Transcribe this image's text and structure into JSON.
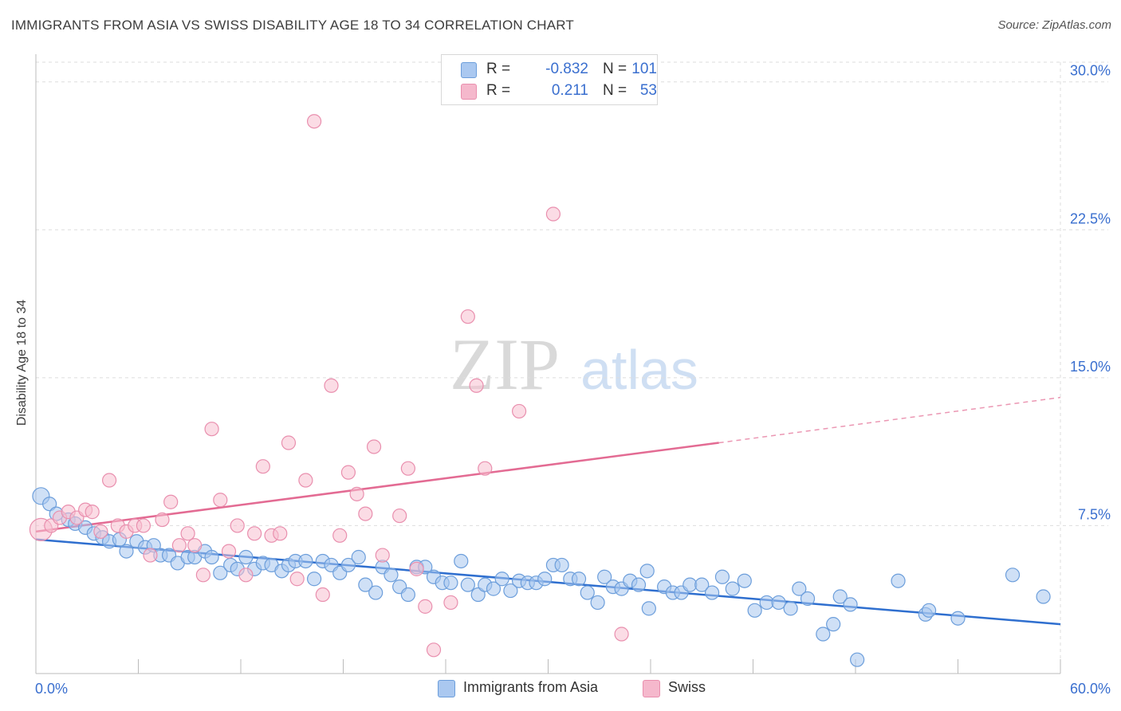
{
  "header": {
    "title": "IMMIGRANTS FROM ASIA VS SWISS DISABILITY AGE 18 TO 34 CORRELATION CHART",
    "source": "Source: ZipAtlas.com"
  },
  "watermark": {
    "zip": "ZIP",
    "atlas": "atlas"
  },
  "legend": {
    "rows": [
      {
        "r_label": "R =",
        "r_value": "-0.832",
        "n_label": "N =",
        "n_value": "101",
        "color": "#aac8f0"
      },
      {
        "r_label": "R =",
        "r_value": "0.211",
        "n_label": "N =",
        "n_value": "53",
        "color": "#f5b8cc"
      }
    ]
  },
  "colors": {
    "blue_fill": "#a8c6ee",
    "blue_stroke": "#6c9edb",
    "blue_line": "#2f6fcf",
    "pink_fill": "#f7bfd0",
    "pink_stroke": "#e98fae",
    "pink_line": "#e36b93",
    "tick_label": "#3a6fcf",
    "grid": "#dddddd"
  },
  "chart_data": {
    "type": "scatter",
    "title": "IMMIGRANTS FROM ASIA VS SWISS DISABILITY AGE 18 TO 34 CORRELATION CHART",
    "xlabel": "",
    "ylabel": "Disability Age 18 to 34",
    "xlim": [
      0,
      60
    ],
    "ylim": [
      0,
      31
    ],
    "x_tick_labels": [
      {
        "value": 0,
        "label": "0.0%"
      },
      {
        "value": 60,
        "label": "60.0%"
      }
    ],
    "y_ticks": [
      {
        "value": 7.5,
        "label": "7.5%"
      },
      {
        "value": 15,
        "label": "15.0%"
      },
      {
        "value": 22.5,
        "label": "22.5%"
      },
      {
        "value": 30,
        "label": "30.0%"
      }
    ],
    "grid": true,
    "legend_position": "bottom",
    "series": [
      {
        "name": "Immigrants from Asia",
        "color": "#a8c6ee",
        "trend": {
          "x0": 0,
          "y0": 6.8,
          "x1": 60,
          "y1": 2.5
        },
        "points": [
          [
            0.3,
            9.0
          ],
          [
            0.8,
            8.6
          ],
          [
            1.2,
            8.1
          ],
          [
            1.9,
            7.8
          ],
          [
            2.3,
            7.6
          ],
          [
            2.9,
            7.4
          ],
          [
            3.4,
            7.1
          ],
          [
            3.9,
            6.9
          ],
          [
            4.3,
            6.7
          ],
          [
            4.9,
            6.8
          ],
          [
            5.3,
            6.2
          ],
          [
            5.9,
            6.7
          ],
          [
            6.4,
            6.4
          ],
          [
            6.9,
            6.5
          ],
          [
            7.3,
            6.0
          ],
          [
            7.8,
            6.0
          ],
          [
            8.3,
            5.6
          ],
          [
            8.9,
            5.9
          ],
          [
            9.3,
            5.9
          ],
          [
            9.9,
            6.2
          ],
          [
            10.3,
            5.9
          ],
          [
            10.8,
            5.1
          ],
          [
            11.4,
            5.5
          ],
          [
            11.8,
            5.3
          ],
          [
            12.3,
            5.9
          ],
          [
            12.8,
            5.3
          ],
          [
            13.3,
            5.6
          ],
          [
            13.8,
            5.5
          ],
          [
            14.4,
            5.2
          ],
          [
            14.8,
            5.5
          ],
          [
            15.2,
            5.7
          ],
          [
            15.8,
            5.7
          ],
          [
            16.3,
            4.8
          ],
          [
            16.8,
            5.7
          ],
          [
            17.3,
            5.5
          ],
          [
            17.8,
            5.1
          ],
          [
            18.3,
            5.5
          ],
          [
            18.9,
            5.9
          ],
          [
            19.3,
            4.5
          ],
          [
            19.9,
            4.1
          ],
          [
            20.3,
            5.4
          ],
          [
            20.8,
            5.0
          ],
          [
            21.3,
            4.4
          ],
          [
            21.8,
            4.0
          ],
          [
            22.3,
            5.4
          ],
          [
            22.8,
            5.4
          ],
          [
            23.3,
            4.9
          ],
          [
            23.8,
            4.6
          ],
          [
            24.3,
            4.6
          ],
          [
            24.9,
            5.7
          ],
          [
            25.3,
            4.5
          ],
          [
            25.9,
            4.0
          ],
          [
            26.3,
            4.5
          ],
          [
            26.8,
            4.3
          ],
          [
            27.3,
            4.8
          ],
          [
            27.8,
            4.2
          ],
          [
            28.3,
            4.7
          ],
          [
            28.8,
            4.6
          ],
          [
            29.3,
            4.6
          ],
          [
            29.8,
            4.8
          ],
          [
            30.3,
            5.5
          ],
          [
            30.8,
            5.5
          ],
          [
            31.3,
            4.8
          ],
          [
            31.8,
            4.8
          ],
          [
            32.3,
            4.1
          ],
          [
            32.9,
            3.6
          ],
          [
            33.3,
            4.9
          ],
          [
            33.8,
            4.4
          ],
          [
            34.3,
            4.3
          ],
          [
            34.8,
            4.7
          ],
          [
            35.3,
            4.5
          ],
          [
            35.8,
            5.2
          ],
          [
            35.9,
            3.3
          ],
          [
            36.8,
            4.4
          ],
          [
            37.3,
            4.1
          ],
          [
            37.8,
            4.1
          ],
          [
            38.3,
            4.5
          ],
          [
            39.0,
            4.5
          ],
          [
            39.6,
            4.1
          ],
          [
            40.2,
            4.9
          ],
          [
            40.8,
            4.3
          ],
          [
            41.5,
            4.7
          ],
          [
            42.1,
            3.2
          ],
          [
            42.8,
            3.6
          ],
          [
            43.5,
            3.6
          ],
          [
            44.2,
            3.3
          ],
          [
            44.7,
            4.3
          ],
          [
            45.2,
            3.8
          ],
          [
            46.1,
            2.0
          ],
          [
            46.7,
            2.5
          ],
          [
            47.1,
            3.9
          ],
          [
            47.7,
            3.5
          ],
          [
            48.1,
            0.7
          ],
          [
            50.5,
            4.7
          ],
          [
            52.1,
            3.0
          ],
          [
            52.3,
            3.2
          ],
          [
            54.0,
            2.8
          ],
          [
            57.2,
            5.0
          ],
          [
            59.0,
            3.9
          ]
        ]
      },
      {
        "name": "Swiss",
        "color": "#f7bfd0",
        "trend": {
          "x0": 0,
          "y0": 7.2,
          "x1": 40,
          "y1": 11.7,
          "dash_x1": 60,
          "dash_y1": 14.0
        },
        "points": [
          [
            0.3,
            7.3
          ],
          [
            0.9,
            7.5
          ],
          [
            1.4,
            7.9
          ],
          [
            1.9,
            8.2
          ],
          [
            2.4,
            7.9
          ],
          [
            2.9,
            8.3
          ],
          [
            3.3,
            8.2
          ],
          [
            3.8,
            7.2
          ],
          [
            4.3,
            9.8
          ],
          [
            4.8,
            7.5
          ],
          [
            5.3,
            7.2
          ],
          [
            5.8,
            7.5
          ],
          [
            6.3,
            7.5
          ],
          [
            6.7,
            6.0
          ],
          [
            7.4,
            7.8
          ],
          [
            7.9,
            8.7
          ],
          [
            8.4,
            6.5
          ],
          [
            8.9,
            7.1
          ],
          [
            9.3,
            6.5
          ],
          [
            9.8,
            5.0
          ],
          [
            10.3,
            12.4
          ],
          [
            10.8,
            8.8
          ],
          [
            11.3,
            6.2
          ],
          [
            11.8,
            7.5
          ],
          [
            12.3,
            5.0
          ],
          [
            12.8,
            7.1
          ],
          [
            13.3,
            10.5
          ],
          [
            13.8,
            7.0
          ],
          [
            14.3,
            7.1
          ],
          [
            14.8,
            11.7
          ],
          [
            15.3,
            4.8
          ],
          [
            15.8,
            9.8
          ],
          [
            16.3,
            28.0
          ],
          [
            16.8,
            4.0
          ],
          [
            17.3,
            14.6
          ],
          [
            17.8,
            7.0
          ],
          [
            18.3,
            10.2
          ],
          [
            18.8,
            9.1
          ],
          [
            19.3,
            8.1
          ],
          [
            19.8,
            11.5
          ],
          [
            20.3,
            6.0
          ],
          [
            21.3,
            8.0
          ],
          [
            21.8,
            10.4
          ],
          [
            22.3,
            5.3
          ],
          [
            22.8,
            3.4
          ],
          [
            23.3,
            1.2
          ],
          [
            24.3,
            3.6
          ],
          [
            25.3,
            18.1
          ],
          [
            25.8,
            14.6
          ],
          [
            26.3,
            10.4
          ],
          [
            28.3,
            13.3
          ],
          [
            30.3,
            23.3
          ],
          [
            34.3,
            2.0
          ]
        ]
      }
    ]
  },
  "bottom_legend": [
    {
      "label": "Immigrants from Asia",
      "color": "#aac8f0"
    },
    {
      "label": "Swiss",
      "color": "#f5b8cc"
    }
  ]
}
